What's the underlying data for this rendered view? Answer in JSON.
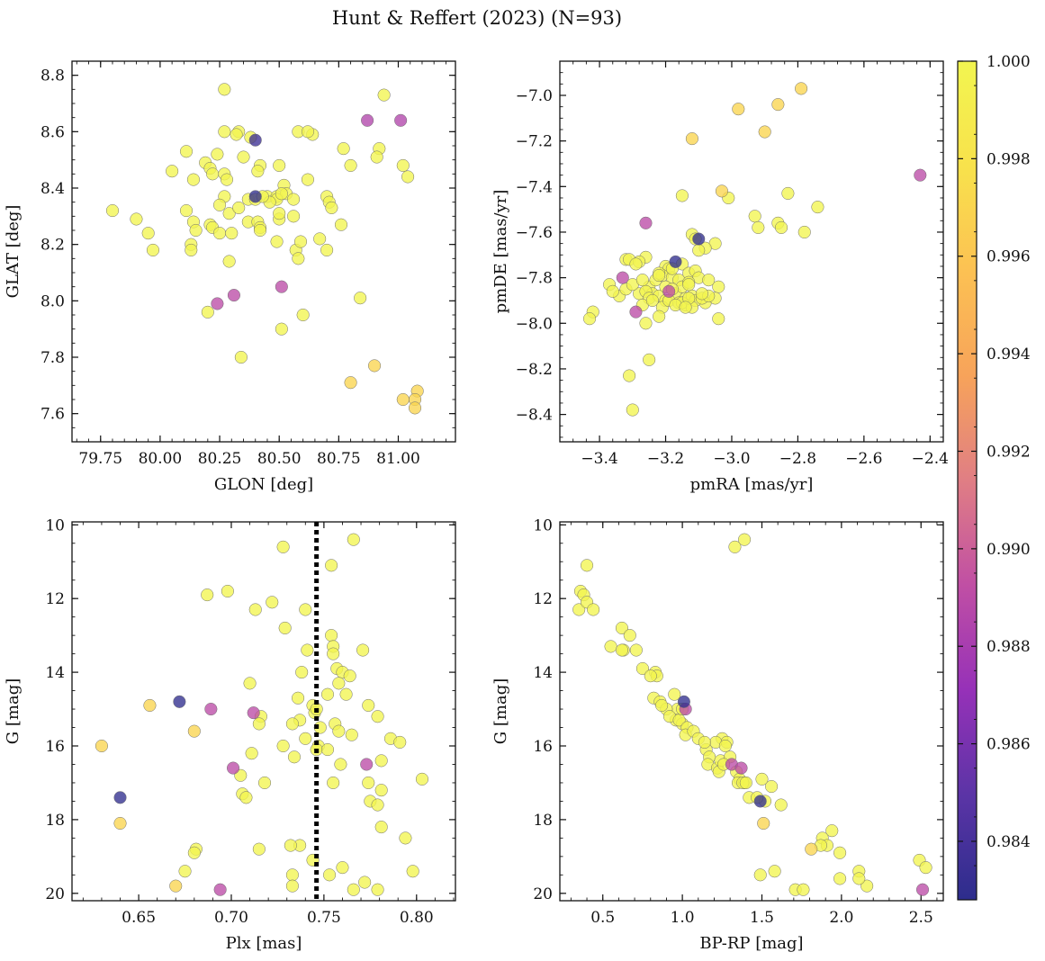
{
  "figure": {
    "title": "Hunt & Reffert (2023) (N=93)"
  },
  "colorbar": {
    "min": 0.9828,
    "max": 1.0,
    "ticks": [
      "0.984",
      "0.986",
      "0.988",
      "0.990",
      "0.992",
      "0.994",
      "0.996",
      "0.998",
      "1.000"
    ],
    "colormap": "plasma",
    "stops": [
      "#2d2d8c",
      "#5b34a6",
      "#9631b8",
      "#c04fa4",
      "#e07e84",
      "#f7a35a",
      "#fcc153",
      "#f8e24c",
      "#f2f550"
    ]
  },
  "chart_data": [
    {
      "type": "scatter",
      "panel": "top-left",
      "xlabel": "GLON [deg]",
      "ylabel": "GLAT [deg]",
      "xlim": [
        79.63,
        81.24
      ],
      "ylim": [
        7.5,
        8.85
      ],
      "invert_y": false,
      "xticks": [
        "79.75",
        "80.00",
        "80.25",
        "80.50",
        "80.75",
        "81.00"
      ],
      "yticks": [
        "7.6",
        "7.8",
        "8.0",
        "8.2",
        "8.4",
        "8.6",
        "8.8"
      ],
      "x": [
        80.27,
        80.94,
        80.87,
        81.01,
        80.33,
        80.32,
        80.38,
        80.4,
        80.27,
        80.58,
        80.64,
        80.62,
        80.77,
        80.11,
        80.24,
        80.35,
        80.19,
        80.21,
        80.27,
        80.28,
        80.42,
        80.41,
        80.5,
        80.62,
        80.8,
        80.92,
        81.02,
        81.04,
        80.05,
        80.14,
        80.22,
        80.27,
        80.37,
        80.4,
        80.45,
        80.49,
        80.52,
        80.53,
        80.49,
        80.56,
        80.7,
        80.71,
        80.11,
        80.14,
        80.25,
        80.29,
        80.33,
        80.37,
        80.41,
        80.42,
        80.46,
        80.5,
        80.5,
        80.56,
        80.72,
        79.8,
        79.9,
        79.95,
        79.97,
        80.15,
        80.21,
        80.22,
        80.25,
        80.3,
        80.42,
        80.43,
        80.49,
        80.51,
        80.57,
        80.58,
        80.59,
        80.67,
        80.7,
        80.13,
        80.13,
        80.29,
        80.76,
        80.2,
        80.6,
        80.51,
        80.84,
        80.34,
        80.91,
        80.31,
        80.24,
        80.51,
        80.9,
        80.8,
        81.02,
        81.08,
        81.07,
        81.07,
        80.4
      ],
      "y": [
        8.75,
        8.73,
        8.64,
        8.64,
        8.6,
        8.59,
        8.58,
        8.57,
        8.6,
        8.6,
        8.59,
        8.6,
        8.54,
        8.53,
        8.52,
        8.51,
        8.49,
        8.47,
        8.45,
        8.43,
        8.48,
        8.46,
        8.48,
        8.43,
        8.48,
        8.54,
        8.48,
        8.44,
        8.46,
        8.43,
        8.45,
        8.37,
        8.36,
        8.36,
        8.37,
        8.37,
        8.41,
        8.38,
        8.36,
        8.36,
        8.37,
        8.35,
        8.32,
        8.28,
        8.34,
        8.31,
        8.33,
        8.28,
        8.28,
        8.26,
        8.35,
        8.29,
        8.31,
        8.3,
        8.33,
        8.32,
        8.29,
        8.24,
        8.18,
        8.25,
        8.27,
        8.26,
        8.24,
        8.24,
        8.25,
        8.37,
        8.21,
        8.38,
        8.18,
        8.15,
        8.21,
        8.22,
        8.18,
        8.2,
        8.18,
        8.14,
        8.27,
        7.96,
        7.95,
        7.9,
        8.01,
        7.8,
        8.51,
        8.02,
        7.99,
        8.05,
        7.77,
        7.71,
        7.65,
        7.68,
        7.65,
        7.62,
        8.37
      ],
      "c": [
        1,
        1,
        0.9885,
        0.9885,
        1,
        1,
        1,
        0.9835,
        1,
        1,
        1,
        1,
        1,
        1,
        1,
        1,
        1,
        1,
        1,
        1,
        1,
        1,
        1,
        1,
        1,
        1,
        1,
        1,
        1,
        1,
        1,
        1,
        1,
        1,
        1,
        1,
        1,
        1,
        1,
        1,
        1,
        1,
        1,
        1,
        1,
        1,
        1,
        1,
        1,
        1,
        1,
        1,
        1,
        1,
        1,
        1,
        1,
        1,
        1,
        1,
        1,
        1,
        1,
        1,
        1,
        1,
        1,
        1,
        1,
        1,
        1,
        1,
        1,
        1,
        1,
        1,
        1,
        1,
        1,
        1,
        1,
        1,
        1,
        0.989,
        0.989,
        0.989,
        0.997,
        0.997,
        0.997,
        0.997,
        0.997,
        0.997,
        0.983
      ]
    },
    {
      "type": "scatter",
      "panel": "top-right",
      "xlabel": "pmRA [mas/yr]",
      "ylabel": "pmDE [mas/yr]",
      "xlim": [
        -3.52,
        -2.36
      ],
      "ylim": [
        -8.52,
        -6.85
      ],
      "invert_y": false,
      "xticks": [
        "−3.4",
        "−3.2",
        "−3.0",
        "−2.8",
        "−2.6",
        "−2.4"
      ],
      "yticks": [
        "−8.4",
        "−8.2",
        "−8.0",
        "−7.8",
        "−7.6",
        "−7.4",
        "−7.2",
        "−7.0"
      ],
      "x": [
        -2.79,
        -2.86,
        -2.98,
        -2.9,
        -3.12,
        -3.03,
        -2.43,
        -2.83,
        -2.74,
        -3.15,
        -3.01,
        -2.93,
        -2.86,
        -2.85,
        -2.78,
        -2.92,
        -3.12,
        -3.11,
        -3.26,
        -3.05,
        -3.08,
        -3.32,
        -3.31,
        -3.28,
        -3.2,
        -3.19,
        -3.15,
        -3.1,
        -3.37,
        -3.34,
        -3.42,
        -3.43,
        -3.36,
        -3.29,
        -3.25,
        -3.24,
        -3.23,
        -3.21,
        -3.18,
        -3.16,
        -3.13,
        -3.11,
        -3.1,
        -3.07,
        -3.04,
        -3.32,
        -3.28,
        -3.26,
        -3.25,
        -3.22,
        -3.2,
        -3.17,
        -3.14,
        -3.12,
        -3.08,
        -3.05,
        -3.3,
        -3.27,
        -3.24,
        -3.21,
        -3.19,
        -3.16,
        -3.14,
        -3.11,
        -3.09,
        -3.07,
        -3.22,
        -3.27,
        -3.2,
        -3.15,
        -3.12,
        -3.09,
        -3.15,
        -3.13,
        -3.18,
        -3.22,
        -3.13,
        -3.18,
        -3.22,
        -3.13,
        -3.04,
        -3.26,
        -3.25,
        -3.31,
        -3.3,
        -3.17,
        -3.14,
        -3.29,
        -3.33,
        -3.26,
        -3.19,
        -3.1,
        -3.17
      ],
      "y": [
        -6.97,
        -7.04,
        -7.06,
        -7.16,
        -7.19,
        -7.42,
        -7.35,
        -7.43,
        -7.49,
        -7.44,
        -7.45,
        -7.53,
        -7.56,
        -7.58,
        -7.6,
        -7.58,
        -7.61,
        -7.63,
        -7.71,
        -7.65,
        -7.67,
        -7.72,
        -7.72,
        -7.73,
        -7.75,
        -7.76,
        -7.74,
        -7.68,
        -7.83,
        -7.88,
        -7.95,
        -7.98,
        -7.86,
        -7.74,
        -7.84,
        -7.87,
        -7.81,
        -7.79,
        -7.8,
        -7.81,
        -7.78,
        -7.77,
        -7.8,
        -7.81,
        -7.84,
        -7.85,
        -7.87,
        -7.86,
        -7.89,
        -7.88,
        -7.9,
        -7.87,
        -7.89,
        -7.88,
        -7.91,
        -7.89,
        -7.83,
        -7.92,
        -7.9,
        -7.93,
        -7.9,
        -7.91,
        -7.92,
        -7.9,
        -7.89,
        -7.88,
        -7.78,
        -7.81,
        -7.84,
        -7.91,
        -7.93,
        -7.87,
        -7.84,
        -7.82,
        -7.76,
        -7.79,
        -7.83,
        -7.85,
        -7.97,
        -7.89,
        -7.98,
        -8.0,
        -8.16,
        -8.23,
        -8.38,
        -7.92,
        -7.93,
        -7.95,
        -7.8,
        -7.56,
        -7.86,
        -7.63,
        -7.73
      ],
      "c": [
        0.997,
        0.997,
        0.997,
        0.997,
        0.997,
        0.997,
        0.989,
        1,
        1,
        1,
        1,
        1,
        1,
        1,
        1,
        1,
        1,
        1,
        1,
        1,
        1,
        1,
        1,
        1,
        1,
        1,
        1,
        1,
        1,
        1,
        1,
        1,
        1,
        1,
        1,
        1,
        1,
        1,
        1,
        1,
        1,
        1,
        1,
        1,
        1,
        1,
        1,
        1,
        1,
        1,
        1,
        1,
        1,
        1,
        1,
        1,
        1,
        1,
        1,
        1,
        1,
        1,
        1,
        1,
        1,
        1,
        1,
        1,
        1,
        1,
        1,
        1,
        1,
        1,
        1,
        1,
        1,
        1,
        1,
        1,
        1,
        1,
        1,
        1,
        1,
        1,
        1,
        0.989,
        0.989,
        0.989,
        0.989,
        0.983,
        0.983
      ]
    },
    {
      "type": "scatter",
      "panel": "bottom-left",
      "xlabel": "Plx [mas]",
      "ylabel": "G [mag]",
      "xlim": [
        0.614,
        0.821
      ],
      "ylim": [
        20.2,
        9.92
      ],
      "invert_y": true,
      "vline": 0.746,
      "xticks": [
        "0.65",
        "0.70",
        "0.75",
        "0.80"
      ],
      "yticks": [
        "10",
        "12",
        "14",
        "16",
        "18",
        "20"
      ],
      "x": [
        0.766,
        0.728,
        0.754,
        0.698,
        0.687,
        0.722,
        0.713,
        0.74,
        0.729,
        0.754,
        0.755,
        0.741,
        0.755,
        0.771,
        0.757,
        0.76,
        0.764,
        0.738,
        0.758,
        0.71,
        0.752,
        0.762,
        0.736,
        0.744,
        0.774,
        0.737,
        0.779,
        0.716,
        0.733,
        0.715,
        0.756,
        0.748,
        0.758,
        0.765,
        0.786,
        0.791,
        0.745,
        0.74,
        0.728,
        0.747,
        0.746,
        0.752,
        0.711,
        0.734,
        0.759,
        0.781,
        0.705,
        0.803,
        0.774,
        0.718,
        0.706,
        0.755,
        0.708,
        0.775,
        0.779,
        0.781,
        0.715,
        0.737,
        0.794,
        0.781,
        0.732,
        0.733,
        0.681,
        0.68,
        0.675,
        0.744,
        0.76,
        0.772,
        0.798,
        0.753,
        0.733,
        0.766,
        0.779,
        0.656,
        0.68,
        0.63,
        0.64,
        0.67,
        0.672,
        0.64,
        0.712,
        0.701,
        0.689,
        0.694,
        0.773,
        0.746
      ],
      "y": [
        10.4,
        10.6,
        11.1,
        11.8,
        11.9,
        12.1,
        12.3,
        12.3,
        12.8,
        13.0,
        13.3,
        13.4,
        13.5,
        13.4,
        13.9,
        14.0,
        14.1,
        14.0,
        14.3,
        14.3,
        14.6,
        14.6,
        14.7,
        14.9,
        14.9,
        15.3,
        15.2,
        15.2,
        15.4,
        15.4,
        15.4,
        15.5,
        15.6,
        15.7,
        15.8,
        15.9,
        15.1,
        15.8,
        16.0,
        16.0,
        16.1,
        16.1,
        16.2,
        16.3,
        16.5,
        16.4,
        16.8,
        16.9,
        17.0,
        17.0,
        17.3,
        17.0,
        17.4,
        17.5,
        17.6,
        17.2,
        18.8,
        18.7,
        18.5,
        18.2,
        18.7,
        19.5,
        18.8,
        18.9,
        19.4,
        19.1,
        19.3,
        19.7,
        19.4,
        19.5,
        19.8,
        19.9,
        19.9,
        14.9,
        15.6,
        16.0,
        18.1,
        19.8,
        14.8,
        17.4,
        15.1,
        16.6,
        15.0,
        19.9,
        16.5,
        15.0
      ],
      "c": [
        1,
        1,
        1,
        1,
        1,
        1,
        1,
        1,
        1,
        1,
        1,
        1,
        1,
        1,
        1,
        1,
        1,
        1,
        1,
        1,
        1,
        1,
        1,
        1,
        1,
        1,
        1,
        1,
        1,
        1,
        1,
        1,
        1,
        1,
        1,
        1,
        1,
        1,
        1,
        1,
        1,
        1,
        1,
        1,
        1,
        1,
        1,
        1,
        1,
        1,
        1,
        1,
        1,
        1,
        1,
        1,
        1,
        1,
        1,
        1,
        1,
        1,
        1,
        1,
        1,
        1,
        1,
        1,
        1,
        1,
        1,
        1,
        1,
        0.997,
        0.997,
        0.997,
        0.997,
        0.997,
        0.983,
        0.983,
        0.989,
        0.989,
        0.989,
        0.989,
        0.989,
        1
      ]
    },
    {
      "type": "scatter",
      "panel": "bottom-right",
      "xlabel": "BP-RP [mag]",
      "ylabel": "G [mag]",
      "xlim": [
        0.23,
        2.64
      ],
      "ylim": [
        20.2,
        9.92
      ],
      "invert_y": true,
      "xticks": [
        "0.5",
        "1.0",
        "1.5",
        "2.0",
        "2.5"
      ],
      "yticks": [
        "10",
        "12",
        "14",
        "16",
        "18",
        "20"
      ],
      "x": [
        1.39,
        1.33,
        0.4,
        0.36,
        0.38,
        0.35,
        0.4,
        0.44,
        0.62,
        0.67,
        0.55,
        0.63,
        0.71,
        0.62,
        0.75,
        0.83,
        0.84,
        0.8,
        0.82,
        0.95,
        0.86,
        0.97,
        0.9,
        0.87,
        0.96,
        1.0,
        0.92,
        0.98,
        1.03,
        1.02,
        1.07,
        1.1,
        1.15,
        1.25,
        1.28,
        1.21,
        1.27,
        1.14,
        1.17,
        1.16,
        1.22,
        1.24,
        1.23,
        1.3,
        1.34,
        1.36,
        1.26,
        1.35,
        1.39,
        1.42,
        1.52,
        1.56,
        1.5,
        1.62,
        1.47,
        1.38,
        1.4,
        1.94,
        1.88,
        1.91,
        1.87,
        1.99,
        1.99,
        2.16,
        2.11,
        2.11,
        2.49,
        2.53,
        1.49,
        1.58,
        1.71,
        1.76,
        1.81,
        1.51,
        1.01,
        1.49,
        1.02,
        1.31,
        1.37,
        2.51,
        1.0
      ],
      "y": [
        10.4,
        10.6,
        11.1,
        11.8,
        11.9,
        12.3,
        12.1,
        12.3,
        12.8,
        13.0,
        13.3,
        13.4,
        13.4,
        13.4,
        13.9,
        14.0,
        14.1,
        14.1,
        14.7,
        14.6,
        14.8,
        15.0,
        15.0,
        14.9,
        15.3,
        15.4,
        15.2,
        15.3,
        15.5,
        15.7,
        15.6,
        15.8,
        16.1,
        15.8,
        15.9,
        15.9,
        16.0,
        15.9,
        16.3,
        16.5,
        16.6,
        16.4,
        16.7,
        16.3,
        16.7,
        16.9,
        16.5,
        17.0,
        17.0,
        17.4,
        17.5,
        17.1,
        16.9,
        17.6,
        17.4,
        17.0,
        17.0,
        18.3,
        18.5,
        18.7,
        18.7,
        18.9,
        19.6,
        19.8,
        19.4,
        19.6,
        19.1,
        19.3,
        19.5,
        19.4,
        19.9,
        19.9,
        18.8,
        18.1,
        14.8,
        17.5,
        15.0,
        16.5,
        16.6,
        19.9,
        15.0
      ],
      "c": [
        1,
        1,
        1,
        1,
        1,
        1,
        1,
        1,
        1,
        1,
        1,
        1,
        1,
        1,
        1,
        1,
        1,
        1,
        1,
        1,
        1,
        1,
        1,
        1,
        1,
        1,
        1,
        1,
        1,
        1,
        1,
        1,
        1,
        1,
        1,
        1,
        1,
        1,
        1,
        1,
        1,
        1,
        1,
        1,
        1,
        1,
        1,
        1,
        1,
        1,
        1,
        1,
        1,
        1,
        1,
        1,
        1,
        1,
        1,
        1,
        1,
        1,
        1,
        1,
        1,
        1,
        1,
        1,
        1,
        1,
        1,
        1,
        0.997,
        0.997,
        0.983,
        0.983,
        0.989,
        0.989,
        0.989,
        0.989,
        1
      ]
    }
  ]
}
